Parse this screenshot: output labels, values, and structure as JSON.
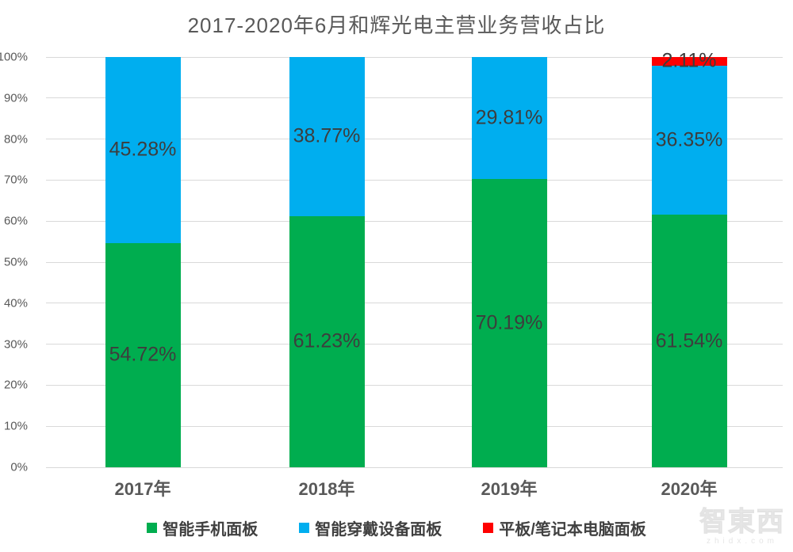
{
  "title": "2017-2020年6月和辉光电主营业务营收占比",
  "colors": {
    "green": "#00ad4f",
    "blue": "#00aeef",
    "red": "#fe0000",
    "grid": "#d9d9d9",
    "data_label": "#3d3d3d",
    "axis_text": "#595959"
  },
  "chart_data": {
    "type": "bar",
    "stacked": true,
    "percent_stacked": true,
    "title": "2017-2020年6月和辉光电主营业务营收占比",
    "categories": [
      "2017年",
      "2018年",
      "2019年",
      "2020年"
    ],
    "series": [
      {
        "name": "智能手机面板",
        "color": "#00ad4f",
        "values": [
          54.72,
          61.23,
          70.19,
          61.54
        ]
      },
      {
        "name": "智能穿戴设备面板",
        "color": "#00aeef",
        "values": [
          45.28,
          38.77,
          29.81,
          36.35
        ]
      },
      {
        "name": "平板/笔记本电脑面板",
        "color": "#fe0000",
        "values": [
          0,
          0,
          0,
          2.11
        ]
      }
    ],
    "data_labels": [
      [
        "54.72%",
        "61.23%",
        "70.19%",
        "61.54%"
      ],
      [
        "45.28%",
        "38.77%",
        "29.81%",
        "36.35%"
      ],
      [
        "",
        "",
        "",
        "2.11%"
      ]
    ],
    "y_ticks": [
      "100%",
      "90%",
      "80%",
      "70%",
      "60%",
      "50%",
      "40%",
      "30%",
      "20%",
      "10%",
      "0%"
    ],
    "ylim": [
      0,
      100
    ],
    "xlabel": "",
    "ylabel": "",
    "grid": "horizontal",
    "legend_position": "bottom"
  },
  "watermark": {
    "text": "智東西",
    "sub": "zhidx.com"
  }
}
